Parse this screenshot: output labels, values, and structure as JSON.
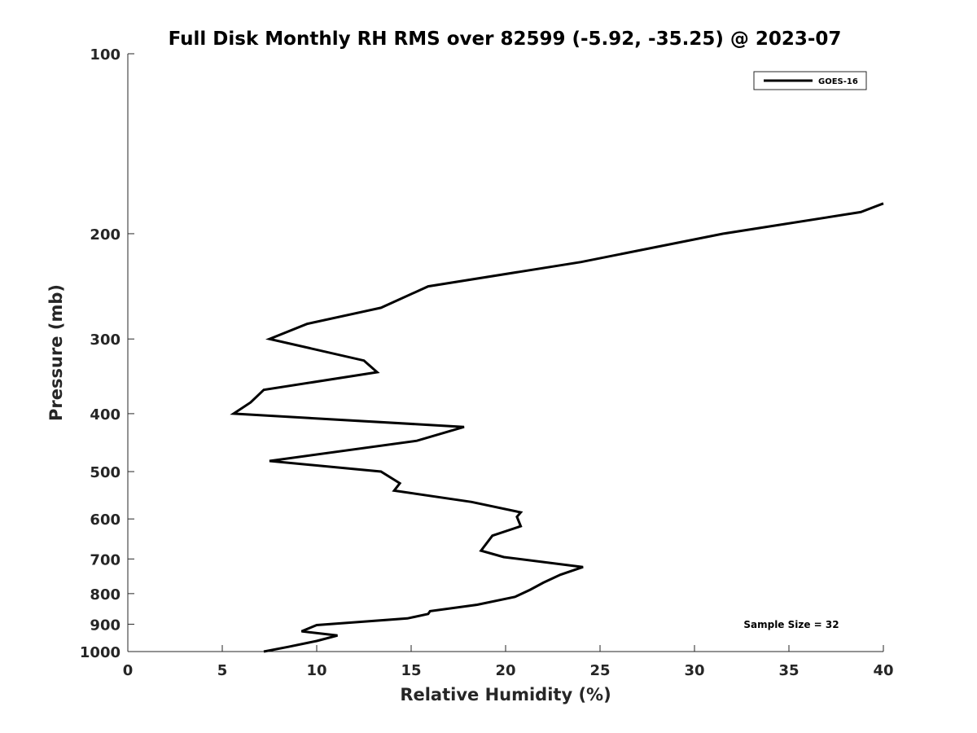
{
  "chart_data": {
    "type": "line",
    "title": "Full Disk Monthly RH RMS over 82599 (-5.92, -35.25) @ 2023-07",
    "xlabel": "Relative Humidity (%)",
    "ylabel": "Pressure (mb)",
    "xlim": [
      0,
      40
    ],
    "ylim": [
      1000,
      100
    ],
    "y_scale": "log",
    "x_ticks": [
      "0",
      "5",
      "10",
      "15",
      "20",
      "25",
      "30",
      "35",
      "40"
    ],
    "y_ticks": [
      "100",
      "200",
      "300",
      "400",
      "500",
      "600",
      "700",
      "800",
      "900",
      "1000"
    ],
    "grid": false,
    "legend_position": "top-right",
    "annotation": "Sample Size = 32",
    "series": [
      {
        "name": "GOES-16",
        "color": "#000000",
        "x": [
          40.0,
          38.8,
          31.5,
          24.0,
          15.9,
          13.4,
          9.5,
          7.5,
          12.5,
          13.2,
          7.2,
          6.5,
          5.6,
          17.8,
          15.3,
          7.5,
          13.4,
          14.4,
          14.1,
          18.2,
          20.8,
          20.6,
          20.8,
          19.3,
          18.7,
          19.9,
          24.1,
          22.9,
          22.0,
          21.3,
          20.5,
          18.5,
          16.0,
          15.9,
          14.8,
          10.0,
          9.2,
          11.1,
          10.0,
          8.5,
          7.2
        ],
        "y": [
          178,
          184,
          200,
          223,
          245,
          266,
          283,
          300,
          326,
          341,
          365,
          383,
          400,
          421,
          444,
          480,
          500,
          523,
          538,
          562,
          585,
          595,
          617,
          640,
          678,
          695,
          722,
          744,
          767,
          788,
          810,
          835,
          856,
          865,
          880,
          903,
          925,
          940,
          960,
          982,
          1000
        ]
      }
    ]
  }
}
